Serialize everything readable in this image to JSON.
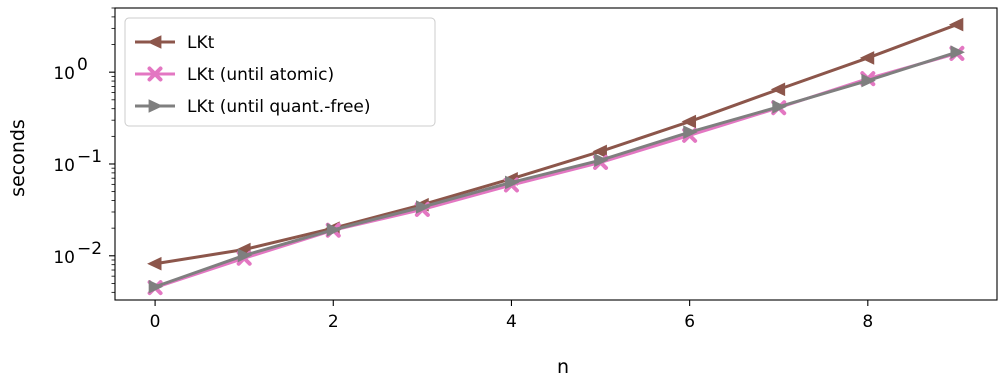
{
  "chart_data": {
    "type": "line",
    "title": "",
    "xlabel": "n",
    "ylabel": "seconds",
    "xlim": [
      -0.45,
      9.45
    ],
    "ylim": [
      0.0033,
      5.0
    ],
    "yscale": "log",
    "grid": false,
    "legend_position": "top-left",
    "x_ticks": [
      0,
      2,
      4,
      6,
      8
    ],
    "x_tick_labels": [
      "0",
      "2",
      "4",
      "6",
      "8"
    ],
    "y_ticks": [
      {
        "value": 0.01,
        "base": "10",
        "exponent": "−2"
      },
      {
        "value": 0.1,
        "base": "10",
        "exponent": "−1"
      },
      {
        "value": 1,
        "base": "10",
        "exponent": "0"
      }
    ],
    "series": [
      {
        "name": "LKt",
        "color": "#8c564b",
        "marker": "triangle-left",
        "x": [
          0,
          1,
          2,
          3,
          4,
          5,
          6,
          7,
          8,
          9
        ],
        "values": [
          0.0082,
          0.0117,
          0.02,
          0.036,
          0.069,
          0.137,
          0.29,
          0.65,
          1.43,
          3.3
        ]
      },
      {
        "name": "LKt (until atomic)",
        "color": "#e377c2",
        "marker": "x",
        "x": [
          0,
          1,
          2,
          3,
          4,
          5,
          6,
          7,
          8,
          9
        ],
        "values": [
          0.0045,
          0.0094,
          0.019,
          0.032,
          0.059,
          0.104,
          0.205,
          0.41,
          0.85,
          1.6
        ]
      },
      {
        "name": "LKt (until quant.-free)",
        "color": "#7f7f7f",
        "marker": "triangle-right",
        "x": [
          0,
          1,
          2,
          3,
          4,
          5,
          6,
          7,
          8,
          9
        ],
        "values": [
          0.0046,
          0.0101,
          0.0192,
          0.034,
          0.063,
          0.11,
          0.222,
          0.42,
          0.81,
          1.65
        ]
      }
    ]
  }
}
